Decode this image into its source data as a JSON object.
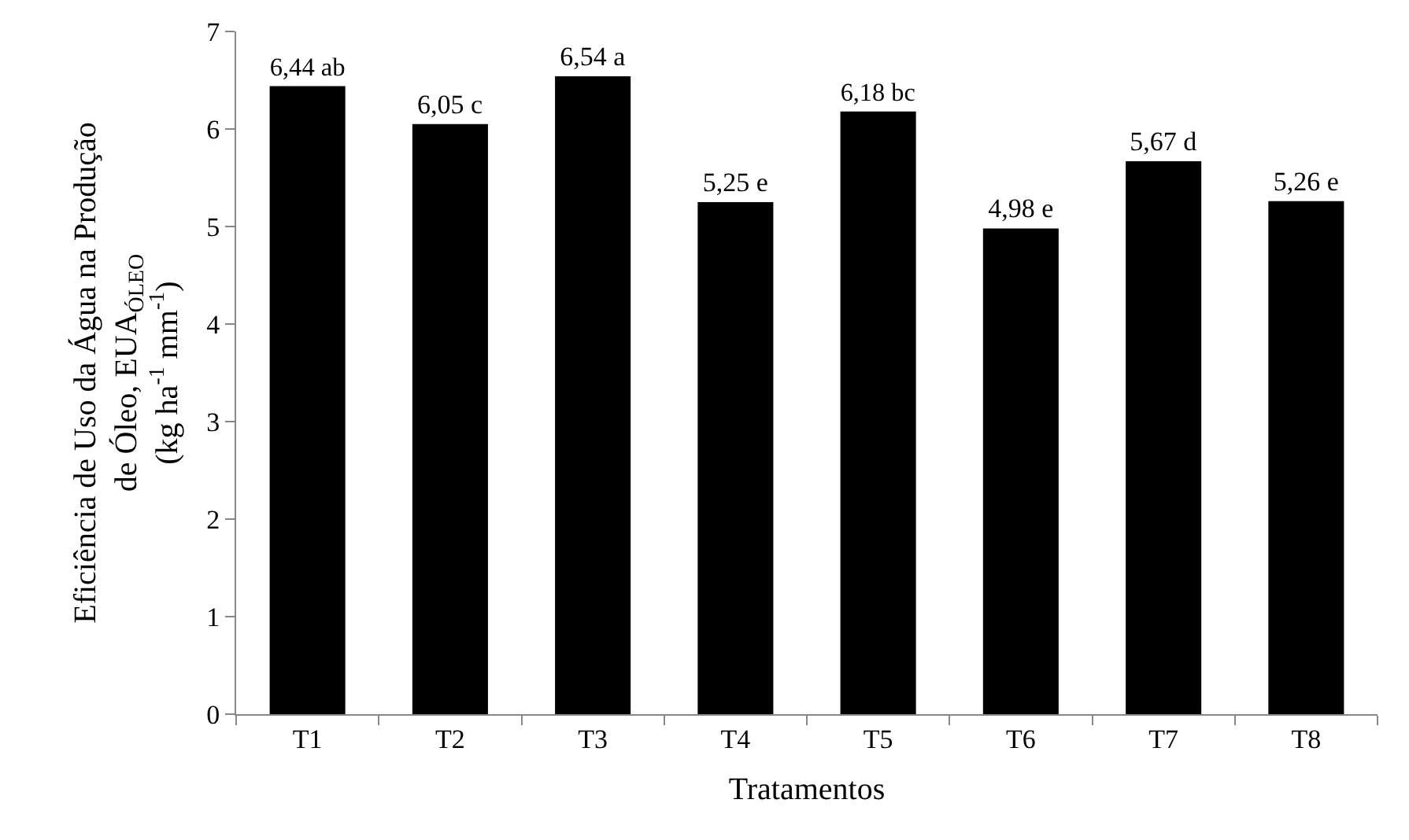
{
  "chart_data": {
    "type": "bar",
    "xlabel": "Tratamentos",
    "ylabel": "Eficiência de Uso da Água na Produção de Óleo, EUA$_{ÓLEO}$ (kg ha$^{-1}$ mm$^{-1}$)",
    "categories": [
      "T1",
      "T2",
      "T3",
      "T4",
      "T5",
      "T6",
      "T7",
      "T8"
    ],
    "values": [
      6.44,
      6.05,
      6.54,
      5.25,
      6.18,
      4.98,
      5.67,
      5.26
    ],
    "value_labels": [
      "6,44 ab",
      "6,05 c",
      "6,54 a",
      "5,25 e",
      "6,18 bc",
      "4,98 e",
      "5,67 d",
      "5,26 e"
    ],
    "color": "#000000",
    "ylim": [
      0,
      7
    ],
    "yticks": [
      0,
      1,
      2,
      3,
      4,
      5,
      6,
      7
    ]
  }
}
